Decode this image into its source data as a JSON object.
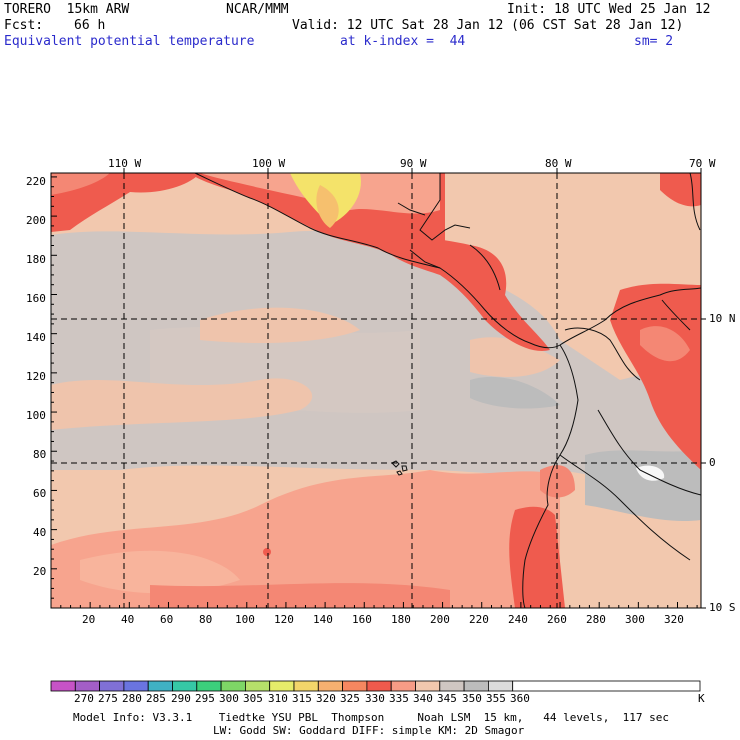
{
  "header": {
    "model": "TORERO  15km ARW",
    "org": "NCAR/MMM",
    "init": "Init: 18 UTC Wed 25 Jan 12",
    "fcst_label": "Fcst:",
    "fcst_value": "66 h",
    "valid": "Valid: 12 UTC Sat 28 Jan 12 (06 CST Sat 28 Jan 12)",
    "field": "Equivalent potential temperature",
    "level": "at k-index =  44",
    "smooth": "sm= 2"
  },
  "map": {
    "longitude_labels": [
      "110 W",
      "100 W",
      "90 W",
      "80 W",
      "70 W"
    ],
    "latitude_labels": [
      "10 N",
      "0",
      "10 S"
    ],
    "y_grid_ticks": [
      "220",
      "200",
      "180",
      "160",
      "140",
      "120",
      "100",
      "80",
      "60",
      "40",
      "20"
    ],
    "x_grid_ticks": [
      "20",
      "40",
      "60",
      "80",
      "100",
      "120",
      "140",
      "160",
      "180",
      "200",
      "220",
      "240",
      "260",
      "280",
      "300",
      "320"
    ],
    "field_colors": {
      "background_peach": "#f2c8ae",
      "gray_band": "#cfc6c2",
      "salmon": "#f7a48e",
      "red": "#ef5b4e",
      "yellow": "#f4e36a",
      "orange": "#f7c280",
      "light_gray": "#bcbcbc",
      "white": "#f7f7f7"
    }
  },
  "colorbar": {
    "labels": [
      "270",
      "275",
      "280",
      "285",
      "290",
      "295",
      "300",
      "305",
      "310",
      "315",
      "320",
      "325",
      "330",
      "335",
      "340",
      "345",
      "350",
      "355",
      "360"
    ],
    "unit": "K",
    "colors": [
      "#c653c6",
      "#a35ec6",
      "#8070d6",
      "#6a74e0",
      "#3fb1c4",
      "#36c8a6",
      "#3ccf7c",
      "#7ed666",
      "#b6e06a",
      "#e6ec6a",
      "#f3d56a",
      "#f6b070",
      "#f68760",
      "#ef5a4c",
      "#f79c86",
      "#f2c8ae",
      "#cfc6c2",
      "#bcbcbc",
      "#dcdcdc",
      "#ffffff"
    ]
  },
  "footer": {
    "line1": "Model Info: V3.3.1    Tiedtke YSU PBL  Thompson     Noah LSM  15 km,   44 levels,  117 sec",
    "line2": "LW: Godd SW: Goddard DIFF: simple KM: 2D Smagor"
  }
}
